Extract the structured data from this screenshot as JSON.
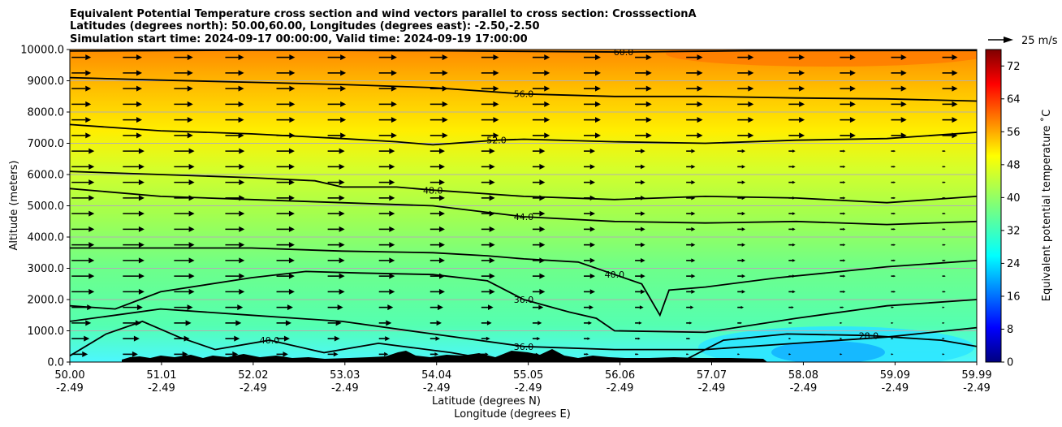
{
  "chart_data": {
    "type": "heatmap",
    "title_lines": [
      "Equivalent Potential Temperature cross section and wind vectors parallel to cross section: CrosssectionA",
      "Latitudes (degrees north): 50.00,60.00, Longitudes (degrees east): -2.50,-2.50",
      "Simulation start time: 2024-09-17 00:00:00, Valid time: 2024-09-19 17:00:00"
    ],
    "ylabel": "Altitude (meters)",
    "xlabel_lat": "Latitude (degrees N)",
    "xlabel_lon": "Longitude (degrees E)",
    "xlim": [
      50.0,
      59.99
    ],
    "ylim": [
      0,
      10000
    ],
    "grid": "horizontal",
    "x_ticks": [
      {
        "lat": "50.00",
        "lon": "-2.49",
        "value": 50.0
      },
      {
        "lat": "51.01",
        "lon": "-2.49",
        "value": 51.01
      },
      {
        "lat": "52.02",
        "lon": "-2.49",
        "value": 52.02
      },
      {
        "lat": "53.03",
        "lon": "-2.49",
        "value": 53.03
      },
      {
        "lat": "54.04",
        "lon": "-2.49",
        "value": 54.04
      },
      {
        "lat": "55.05",
        "lon": "-2.49",
        "value": 55.05
      },
      {
        "lat": "56.06",
        "lon": "-2.49",
        "value": 56.06
      },
      {
        "lat": "57.07",
        "lon": "-2.49",
        "value": 57.07
      },
      {
        "lat": "58.08",
        "lon": "-2.49",
        "value": 58.08
      },
      {
        "lat": "59.09",
        "lon": "-2.49",
        "value": 59.09
      },
      {
        "lat": "59.99",
        "lon": "-2.49",
        "value": 59.99
      }
    ],
    "y_ticks": [
      {
        "label": "0.0",
        "value": 0
      },
      {
        "label": "1000.0",
        "value": 1000
      },
      {
        "label": "2000.0",
        "value": 2000
      },
      {
        "label": "3000.0",
        "value": 3000
      },
      {
        "label": "4000.0",
        "value": 4000
      },
      {
        "label": "5000.0",
        "value": 5000
      },
      {
        "label": "6000.0",
        "value": 6000
      },
      {
        "label": "7000.0",
        "value": 7000
      },
      {
        "label": "8000.0",
        "value": 8000
      },
      {
        "label": "9000.0",
        "value": 9000
      },
      {
        "label": "10000.0",
        "value": 10000
      }
    ],
    "colorbar": {
      "label": "Equivalent potential temperature $^\\circ$C",
      "label_text": "Equivalent potential temperature ˚C",
      "range": [
        0,
        76
      ],
      "ticks": [
        {
          "label": "0",
          "value": 0
        },
        {
          "label": "8",
          "value": 8
        },
        {
          "label": "16",
          "value": 16
        },
        {
          "label": "24",
          "value": 24
        },
        {
          "label": "32",
          "value": 32
        },
        {
          "label": "40",
          "value": 40
        },
        {
          "label": "48",
          "value": 48
        },
        {
          "label": "56",
          "value": 56
        },
        {
          "label": "64",
          "value": 64
        },
        {
          "label": "72",
          "value": 72
        }
      ],
      "colormap": "jet"
    },
    "wind_key": {
      "label": "25 m/s",
      "value": 25
    },
    "contours": [
      {
        "level": 60,
        "label": "60.0",
        "points": [
          [
            50.0,
            9950
          ],
          [
            52.0,
            9980
          ],
          [
            54.0,
            9960
          ],
          [
            56.1,
            9920
          ],
          [
            57.5,
            9960
          ],
          [
            59.99,
            9970
          ]
        ]
      },
      {
        "level": 56,
        "label": "56.0",
        "points": [
          [
            50.0,
            9100
          ],
          [
            51.0,
            9020
          ],
          [
            52.0,
            8950
          ],
          [
            53.0,
            8880
          ],
          [
            54.0,
            8780
          ],
          [
            55.0,
            8580
          ],
          [
            56.0,
            8500
          ],
          [
            57.0,
            8500
          ],
          [
            58.0,
            8450
          ],
          [
            59.0,
            8420
          ],
          [
            59.99,
            8350
          ]
        ]
      },
      {
        "level": 52,
        "label": "52.0",
        "points": [
          [
            50.0,
            7600
          ],
          [
            51.0,
            7400
          ],
          [
            52.0,
            7300
          ],
          [
            53.0,
            7150
          ],
          [
            53.6,
            7050
          ],
          [
            54.0,
            6950
          ],
          [
            54.7,
            7100
          ],
          [
            55.0,
            7130
          ],
          [
            56.0,
            7050
          ],
          [
            57.0,
            7000
          ],
          [
            58.0,
            7100
          ],
          [
            59.0,
            7150
          ],
          [
            59.99,
            7350
          ]
        ]
      },
      {
        "level": 48,
        "label": "48.0",
        "points": [
          [
            50.0,
            6100
          ],
          [
            51.0,
            6000
          ],
          [
            52.0,
            5900
          ],
          [
            52.7,
            5800
          ],
          [
            53.0,
            5600
          ],
          [
            53.6,
            5600
          ],
          [
            54.0,
            5500
          ],
          [
            55.0,
            5300
          ],
          [
            56.0,
            5200
          ],
          [
            57.0,
            5300
          ],
          [
            58.0,
            5250
          ],
          [
            59.0,
            5100
          ],
          [
            59.99,
            5300
          ]
        ]
      },
      {
        "level": 44,
        "label": "44.0",
        "points": [
          [
            50.0,
            5550
          ],
          [
            51.0,
            5300
          ],
          [
            52.0,
            5200
          ],
          [
            53.0,
            5100
          ],
          [
            54.0,
            5000
          ],
          [
            55.0,
            4650
          ],
          [
            56.0,
            4500
          ],
          [
            57.0,
            4450
          ],
          [
            58.0,
            4500
          ],
          [
            59.0,
            4400
          ],
          [
            59.99,
            4500
          ]
        ]
      },
      {
        "level": 40,
        "label": "40.0",
        "points": [
          [
            50.0,
            3650
          ],
          [
            51.0,
            3650
          ],
          [
            52.0,
            3650
          ],
          [
            53.0,
            3550
          ],
          [
            54.0,
            3500
          ],
          [
            54.6,
            3400
          ],
          [
            55.0,
            3300
          ],
          [
            55.6,
            3200
          ],
          [
            56.0,
            2800
          ],
          [
            56.3,
            2500
          ],
          [
            56.5,
            1500
          ],
          [
            56.6,
            2300
          ],
          [
            57.0,
            2400
          ],
          [
            57.8,
            2700
          ],
          [
            58.5,
            2900
          ],
          [
            59.0,
            3050
          ],
          [
            59.99,
            3250
          ]
        ]
      },
      {
        "level": 36,
        "label": "36.0",
        "points": [
          [
            50.0,
            1800
          ],
          [
            50.5,
            1700
          ],
          [
            51.0,
            2250
          ],
          [
            52.0,
            2700
          ],
          [
            52.6,
            2900
          ],
          [
            53.2,
            2850
          ],
          [
            54.0,
            2800
          ],
          [
            54.6,
            2600
          ],
          [
            55.0,
            2000
          ],
          [
            55.5,
            1600
          ],
          [
            55.8,
            1400
          ],
          [
            56.0,
            1000
          ],
          [
            57.0,
            950
          ],
          [
            58.0,
            1400
          ],
          [
            59.0,
            1800
          ],
          [
            59.99,
            2000
          ]
        ]
      },
      {
        "level": 36,
        "label": "36.0",
        "points": [
          [
            50.0,
            1300
          ],
          [
            51.0,
            1700
          ],
          [
            52.0,
            1500
          ],
          [
            52.5,
            1400
          ],
          [
            53.0,
            1300
          ],
          [
            54.0,
            900
          ],
          [
            55.0,
            500
          ],
          [
            56.0,
            400
          ],
          [
            57.0,
            400
          ],
          [
            58.0,
            600
          ],
          [
            59.0,
            800
          ],
          [
            59.99,
            1100
          ]
        ]
      },
      {
        "level": 40,
        "label": "40.0",
        "points": [
          [
            50.0,
            200
          ],
          [
            50.4,
            900
          ],
          [
            50.8,
            1300
          ],
          [
            51.2,
            800
          ],
          [
            51.6,
            400
          ],
          [
            52.2,
            700
          ],
          [
            52.8,
            300
          ],
          [
            53.4,
            600
          ],
          [
            54.2,
            300
          ],
          [
            54.6,
            100
          ]
        ]
      },
      {
        "level": 28,
        "label": "28.0",
        "points": [
          [
            56.8,
            100
          ],
          [
            57.2,
            700
          ],
          [
            57.9,
            900
          ],
          [
            58.8,
            850
          ],
          [
            59.6,
            700
          ],
          [
            59.99,
            500
          ]
        ]
      }
    ]
  }
}
